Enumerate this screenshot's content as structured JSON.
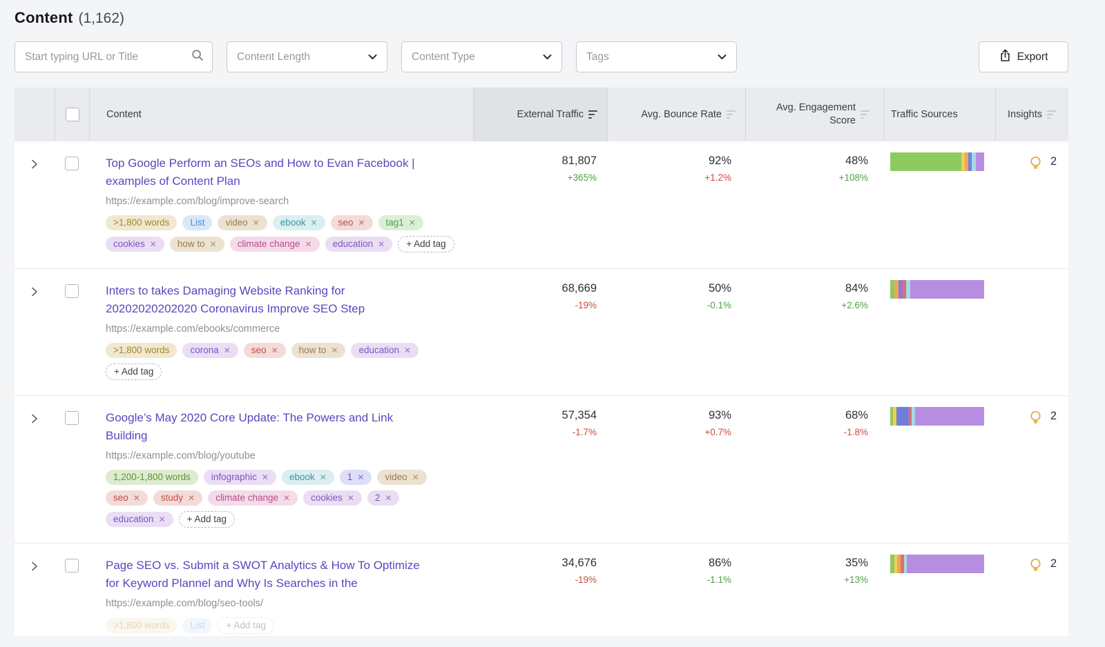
{
  "page": {
    "title": "Content",
    "count": "(1,162)"
  },
  "filters": {
    "search_placeholder": "Start typing URL or Title",
    "dropdowns": [
      "Content Length",
      "Content Type",
      "Tags"
    ],
    "export_label": "Export"
  },
  "table": {
    "columns": {
      "content": "Content",
      "traffic": "External Traffic",
      "bounce": "Avg. Bounce Rate",
      "engagement": "Avg. Engagement Score",
      "sources": "Traffic Sources",
      "insights": "Insights"
    },
    "rows": [
      {
        "title": "Top Google Perform an SEOs and How to Evan Facebook | examples of Content Plan",
        "url": "https://example.com/blog/improve-search",
        "tags": [
          {
            "label": ">1,800 words",
            "color": "gold",
            "x": false
          },
          {
            "label": "List",
            "color": "blue",
            "x": false
          },
          {
            "label": "video",
            "color": "brown",
            "x": true
          },
          {
            "label": "ebook",
            "color": "teal",
            "x": true
          },
          {
            "label": "seo",
            "color": "red",
            "x": true
          },
          {
            "label": "tag1",
            "color": "green",
            "x": true
          },
          {
            "label": "cookies",
            "color": "purple",
            "x": true
          },
          {
            "label": "how to",
            "color": "brown",
            "x": true
          },
          {
            "label": "climate change",
            "color": "pink",
            "x": true
          },
          {
            "label": "education",
            "color": "purple",
            "x": true
          }
        ],
        "add_tag": "+ Add tag",
        "traffic": {
          "value": "81,807",
          "change": "+365%",
          "trend": "green"
        },
        "bounce": {
          "value": "92%",
          "change": "+1.2%",
          "trend": "red"
        },
        "engagement": {
          "value": "48%",
          "change": "+108%",
          "trend": "green"
        },
        "sources": [
          {
            "color": "#8dcb61",
            "pct": 76
          },
          {
            "color": "#f4cd54",
            "pct": 3.5
          },
          {
            "color": "#eca75b",
            "pct": 3.5
          },
          {
            "color": "#7480dc",
            "pct": 4
          },
          {
            "color": "#a6d9e6",
            "pct": 4
          },
          {
            "color": "#b78de2",
            "pct": 9
          }
        ],
        "insights": "2"
      },
      {
        "title": "Inters to takes Damaging Website Ranking for 20202020202020 Coronavirus Improve SEO Step",
        "url": "https://example.com/ebooks/commerce",
        "tags": [
          {
            "label": ">1,800 words",
            "color": "gold",
            "x": false
          },
          {
            "label": "corona",
            "color": "purple",
            "x": true
          },
          {
            "label": "seo",
            "color": "red",
            "x": true
          },
          {
            "label": "how to",
            "color": "brown",
            "x": true
          },
          {
            "label": "education",
            "color": "purple",
            "x": true
          }
        ],
        "add_tag": "+ Add tag",
        "traffic": {
          "value": "68,669",
          "change": "-19%",
          "trend": "red"
        },
        "bounce": {
          "value": "50%",
          "change": "-0.1%",
          "trend": "green"
        },
        "engagement": {
          "value": "84%",
          "change": "+2.6%",
          "trend": "green"
        },
        "sources": [
          {
            "color": "#8dcb61",
            "pct": 4.5
          },
          {
            "color": "#eca75b",
            "pct": 4
          },
          {
            "color": "#9077d8",
            "pct": 4.5
          },
          {
            "color": "#dd6f6f",
            "pct": 4
          },
          {
            "color": "#a6d9e6",
            "pct": 4.5
          },
          {
            "color": "#b78de2",
            "pct": 78.5
          }
        ],
        "insights": ""
      },
      {
        "title": "Google’s May 2020 Core Update: The Powers and Link Building",
        "url": "https://example.com/blog/youtube",
        "tags": [
          {
            "label": "1,200-1,800 words",
            "color": "greenlight",
            "x": false
          },
          {
            "label": "infographic",
            "color": "purple",
            "x": true
          },
          {
            "label": "ebook",
            "color": "teal",
            "x": true
          },
          {
            "label": "1",
            "color": "indigo",
            "x": true
          },
          {
            "label": "video",
            "color": "brown",
            "x": true
          },
          {
            "label": "seo",
            "color": "red",
            "x": true
          },
          {
            "label": "study",
            "color": "red",
            "x": true
          },
          {
            "label": "climate change",
            "color": "pink",
            "x": true
          },
          {
            "label": "cookies",
            "color": "purple",
            "x": true
          },
          {
            "label": "2",
            "color": "purple",
            "x": true
          },
          {
            "label": "education",
            "color": "purple",
            "x": true
          }
        ],
        "add_tag": "+ Add tag",
        "traffic": {
          "value": "57,354",
          "change": "-1.7%",
          "trend": "red"
        },
        "bounce": {
          "value": "93%",
          "change": "+0.7%",
          "trend": "red"
        },
        "engagement": {
          "value": "68%",
          "change": "-1.8%",
          "trend": "red"
        },
        "sources": [
          {
            "color": "#8dcb61",
            "pct": 3
          },
          {
            "color": "#f4cd54",
            "pct": 3.5
          },
          {
            "color": "#6f7edb",
            "pct": 13
          },
          {
            "color": "#dd6f6f",
            "pct": 3.5
          },
          {
            "color": "#a6d9e6",
            "pct": 3.5
          },
          {
            "color": "#b78de2",
            "pct": 73.5
          }
        ],
        "insights": "2"
      },
      {
        "title": "Page SEO vs. Submit a SWOT Analytics & How To Optimize for Keyword Plannel and Why Is Searches in the",
        "url": "https://example.com/blog/seo-tools/",
        "tags": [
          {
            "label": ">1,800 words",
            "color": "gold",
            "x": false
          },
          {
            "label": "List",
            "color": "blue",
            "x": false
          }
        ],
        "add_tag": "+ Add tag",
        "tags_faded": "true",
        "traffic": {
          "value": "34,676",
          "change": "-19%",
          "trend": "red"
        },
        "bounce": {
          "value": "86%",
          "change": "-1.1%",
          "trend": "green"
        },
        "engagement": {
          "value": "35%",
          "change": "+13%",
          "trend": "green"
        },
        "sources": [
          {
            "color": "#8dcb61",
            "pct": 4.5
          },
          {
            "color": "#f4cd54",
            "pct": 3
          },
          {
            "color": "#eca75b",
            "pct": 3.5
          },
          {
            "color": "#dd6f6f",
            "pct": 3.5
          },
          {
            "color": "#a6d9e6",
            "pct": 3
          },
          {
            "color": "#b78de2",
            "pct": 82.5
          }
        ],
        "insights": "2"
      }
    ]
  }
}
